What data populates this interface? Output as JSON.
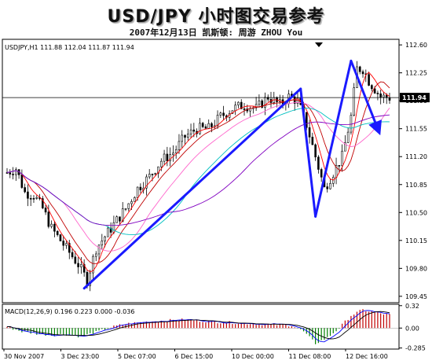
{
  "header": {
    "title": "USD/JPY 小时图交易参考",
    "subtitle": "2007年12月13日  凯斯顿: 周游 ZHOU You"
  },
  "chart_data": [
    {
      "type": "line",
      "panel": "price",
      "info_label": "USDJPY,H1  111.88 112.04 111.87 111.94",
      "ylim": [
        109.37,
        112.67
      ],
      "y_ticks": [
        "112.60",
        "112.25",
        "111.90",
        "111.55",
        "111.20",
        "110.85",
        "110.50",
        "110.15",
        "109.80",
        "109.45"
      ],
      "y_tick_values": [
        112.6,
        112.25,
        111.9,
        111.55,
        111.2,
        110.85,
        110.5,
        110.15,
        109.8,
        109.45
      ],
      "current_price": 111.94,
      "current_price_label": "111.94",
      "x_tick_labels": [
        "30 Nov 2007",
        "3 Dec 23:00",
        "5 Dec 07:00",
        "6 Dec 15:00",
        "10 Dec 00:00",
        "11 Dec 08:00",
        "12 Dec 16:00"
      ],
      "candle_count": 130,
      "close_path": [
        [
          0,
          111.0
        ],
        [
          3,
          111.05
        ],
        [
          6,
          110.75
        ],
        [
          9,
          110.72
        ],
        [
          12,
          110.55
        ],
        [
          15,
          110.3
        ],
        [
          18,
          110.15
        ],
        [
          21,
          110.0
        ],
        [
          24,
          109.85
        ],
        [
          27,
          109.65
        ],
        [
          30,
          110.05
        ],
        [
          33,
          110.2
        ],
        [
          36,
          110.35
        ],
        [
          40,
          110.55
        ],
        [
          44,
          110.8
        ],
        [
          48,
          110.95
        ],
        [
          52,
          111.15
        ],
        [
          56,
          111.25
        ],
        [
          60,
          111.45
        ],
        [
          64,
          111.55
        ],
        [
          68,
          111.55
        ],
        [
          72,
          111.7
        ],
        [
          76,
          111.8
        ],
        [
          80,
          111.85
        ],
        [
          84,
          111.8
        ],
        [
          88,
          111.95
        ],
        [
          92,
          111.85
        ],
        [
          95,
          111.95
        ],
        [
          98,
          111.9
        ],
        [
          101,
          111.6
        ],
        [
          104,
          111.2
        ],
        [
          107,
          110.8
        ],
        [
          110,
          111.0
        ],
        [
          113,
          111.2
        ],
        [
          116,
          111.7
        ],
        [
          118,
          112.3
        ],
        [
          120,
          112.3
        ],
        [
          122,
          112.15
        ],
        [
          124,
          112.05
        ],
        [
          126,
          111.95
        ],
        [
          129,
          111.94
        ]
      ],
      "moving_averages": [
        {
          "name": "",
          "color": "#ff0000",
          "period": 5
        },
        {
          "name": "",
          "color": "#c00000",
          "period": 10
        },
        {
          "name": "",
          "color": "#ff66cc",
          "period": 20
        },
        {
          "name": "",
          "color": "#00c0c0",
          "period": 34
        },
        {
          "name": "",
          "color": "#8000c0",
          "period": 55
        }
      ],
      "trendlines": [
        [
          [
            26,
            109.55
          ],
          [
            99,
            112.05
          ]
        ],
        [
          [
            99,
            112.05
          ],
          [
            104,
            110.45
          ]
        ],
        [
          [
            104,
            110.45
          ],
          [
            116,
            112.4
          ]
        ],
        [
          [
            116,
            112.4
          ],
          [
            125,
            111.55
          ]
        ]
      ],
      "trendline_color": "#1a1aff"
    },
    {
      "type": "bar",
      "panel": "indicator",
      "info_label": "MACD(12,26,9)  0.196 0.223 0.000 -0.036",
      "ylim": [
        -0.3,
        0.34
      ],
      "y_ticks": [
        "0.32",
        "0.00",
        "-0.285"
      ],
      "y_tick_values": [
        0.32,
        0.0,
        -0.285
      ],
      "histogram_path": [
        [
          0,
          0.02
        ],
        [
          5,
          -0.05
        ],
        [
          10,
          -0.08
        ],
        [
          15,
          -0.1
        ],
        [
          20,
          -0.09
        ],
        [
          25,
          -0.12
        ],
        [
          30,
          -0.06
        ],
        [
          35,
          0.01
        ],
        [
          40,
          0.06
        ],
        [
          50,
          0.1
        ],
        [
          60,
          0.12
        ],
        [
          70,
          0.09
        ],
        [
          80,
          0.07
        ],
        [
          90,
          0.05
        ],
        [
          96,
          0.04
        ],
        [
          100,
          -0.05
        ],
        [
          104,
          -0.22
        ],
        [
          108,
          -0.14
        ],
        [
          112,
          0.0
        ],
        [
          116,
          0.18
        ],
        [
          120,
          0.26
        ],
        [
          124,
          0.22
        ],
        [
          129,
          0.19
        ]
      ],
      "positive_color": "#c00000",
      "negative_color": "#008000",
      "signal_color": "#000000",
      "macd_color": "#0000ff"
    }
  ]
}
